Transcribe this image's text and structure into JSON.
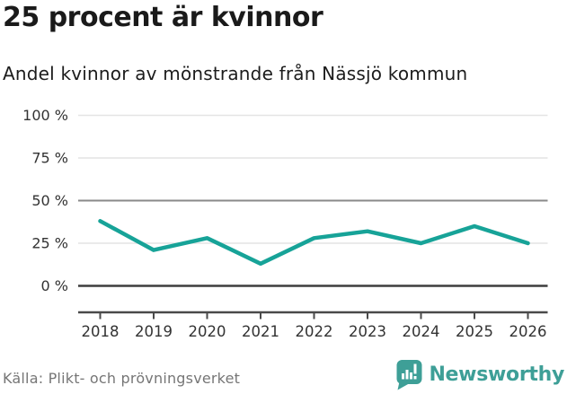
{
  "header": {
    "title": "25 procent är kvinnor",
    "subtitle": "Andel kvinnor av mönstrande från Nässjö kommun"
  },
  "chart_data": {
    "type": "line",
    "title": "25 procent är kvinnor",
    "subtitle": "Andel kvinnor av mönstrande från Nässjö kommun",
    "categories": [
      "2018",
      "2019",
      "2020",
      "2021",
      "2022",
      "2023",
      "2024",
      "2025",
      "2026"
    ],
    "series": [
      {
        "name": "Andel kvinnor av mönstrande",
        "values": [
          38,
          21,
          28,
          13,
          28,
          32,
          25,
          35,
          25
        ]
      }
    ],
    "unit": "%",
    "ylim": [
      0,
      100
    ],
    "yticks": [
      {
        "value": 100,
        "label": "100 %"
      },
      {
        "value": 75,
        "label": "75 %"
      },
      {
        "value": 50,
        "label": "50 %"
      },
      {
        "value": 25,
        "label": "25 %"
      },
      {
        "value": 0,
        "label": "0 %"
      }
    ],
    "grid": true,
    "legend_position": "none",
    "line_color": "#17A398"
  },
  "colors": {
    "line": "#17A398",
    "grid_light": "#E4E4E4",
    "grid_mid": "#8A8A8A",
    "grid_zero": "#3D3D3D",
    "axis": "#4A4A4A",
    "tick_text": "#333333",
    "title_text": "#1A1A1A",
    "source_text": "#767676",
    "brand_teal": "#3E9F97"
  },
  "footer": {
    "source": "Källa: Plikt- och prövningsverket",
    "brand": "Newsworthy"
  }
}
